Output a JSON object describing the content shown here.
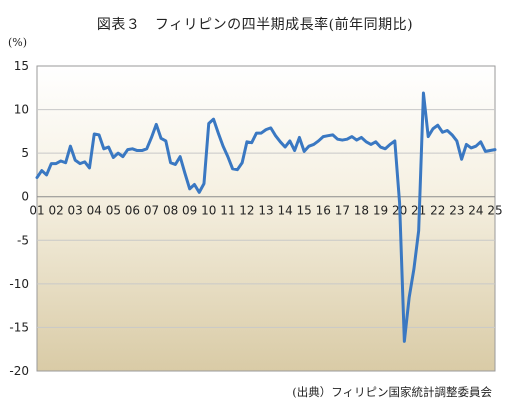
{
  "title": "図表３　フィリピンの四半期成長率(前年同期比)",
  "unit_label": "(%)",
  "source_note": "(出典）フィリピン国家統計調整委員会",
  "colors": {
    "line": "#3a78c2",
    "grid": "#c8c8c8",
    "bg_top": "#ffffff",
    "bg_bottom": "#d9cba6",
    "axis": "#9a9a9a"
  },
  "chart_data": {
    "type": "line",
    "grid": true,
    "ylim": [
      -20,
      15
    ],
    "y_ticks": [
      15,
      10,
      5,
      0,
      -5,
      -10,
      -15,
      -20
    ],
    "xlim": [
      2001,
      2025
    ],
    "x_tick_labels": [
      "01",
      "02",
      "03",
      "04",
      "05",
      "06",
      "07",
      "08",
      "09",
      "10",
      "11",
      "12",
      "13",
      "14",
      "15",
      "16",
      "17",
      "18",
      "19",
      "20",
      "21",
      "22",
      "23",
      "24",
      "25"
    ],
    "series": [
      {
        "x": [
          2001.0,
          2001.25,
          2001.5,
          2001.75,
          2002.0,
          2002.25,
          2002.5,
          2002.75,
          2003.0,
          2003.25,
          2003.5,
          2003.75,
          2004.0,
          2004.25,
          2004.5,
          2004.75,
          2005.0,
          2005.25,
          2005.5,
          2005.75,
          2006.0,
          2006.25,
          2006.5,
          2006.75,
          2007.0,
          2007.25,
          2007.5,
          2007.75,
          2008.0,
          2008.25,
          2008.5,
          2008.75,
          2009.0,
          2009.25,
          2009.5,
          2009.75,
          2010.0,
          2010.25,
          2010.5,
          2010.75,
          2011.0,
          2011.25,
          2011.5,
          2011.75,
          2012.0,
          2012.25,
          2012.5,
          2012.75,
          2013.0,
          2013.25,
          2013.5,
          2013.75,
          2014.0,
          2014.25,
          2014.5,
          2014.75,
          2015.0,
          2015.25,
          2015.5,
          2015.75,
          2016.0,
          2016.25,
          2016.5,
          2016.75,
          2017.0,
          2017.25,
          2017.5,
          2017.75,
          2018.0,
          2018.25,
          2018.5,
          2018.75,
          2019.0,
          2019.25,
          2019.5,
          2019.75,
          2020.0,
          2020.25,
          2020.5,
          2020.75,
          2021.0,
          2021.25,
          2021.5,
          2021.75,
          2022.0,
          2022.25,
          2022.5,
          2022.75,
          2023.0,
          2023.25,
          2023.5,
          2023.75,
          2024.0,
          2024.25,
          2024.5,
          2024.75,
          2025.0
        ],
        "values": [
          2.2,
          3.0,
          2.5,
          3.8,
          3.8,
          4.1,
          3.9,
          5.8,
          4.2,
          3.8,
          4.0,
          3.3,
          7.2,
          7.1,
          5.5,
          5.7,
          4.5,
          5.0,
          4.6,
          5.4,
          5.5,
          5.3,
          5.3,
          5.5,
          6.8,
          8.3,
          6.7,
          6.4,
          3.9,
          3.7,
          4.6,
          2.7,
          0.9,
          1.4,
          0.5,
          1.5,
          8.4,
          8.9,
          7.3,
          5.8,
          4.6,
          3.2,
          3.1,
          3.9,
          6.3,
          6.2,
          7.3,
          7.3,
          7.7,
          7.9,
          7.0,
          6.3,
          5.7,
          6.4,
          5.3,
          6.8,
          5.2,
          5.8,
          6.0,
          6.4,
          6.9,
          7.0,
          7.1,
          6.6,
          6.5,
          6.6,
          6.9,
          6.5,
          6.8,
          6.3,
          6.0,
          6.3,
          5.7,
          5.5,
          6.0,
          6.4,
          -0.7,
          -16.6,
          -11.6,
          -8.3,
          -3.9,
          11.9,
          6.9,
          7.8,
          8.2,
          7.4,
          7.6,
          7.1,
          6.4,
          4.3,
          6.0,
          5.6,
          5.8,
          6.3,
          5.2,
          5.3,
          5.4
        ]
      }
    ]
  }
}
